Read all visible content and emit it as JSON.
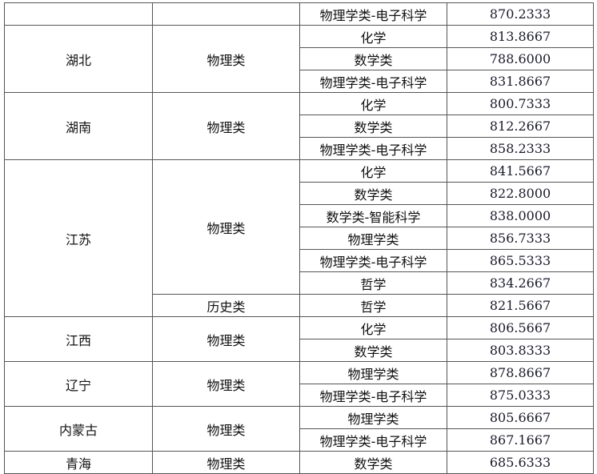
{
  "rows": [
    {
      "province": "",
      "category": "",
      "majors": [
        {
          "major": "物理学类-电子科学",
          "score": "870.2333"
        }
      ],
      "prov_span": 1,
      "cats": [
        {
          "category": "",
          "majors": [
            {
              "major": "物理学类-电子科学",
              "score": "870.2333"
            }
          ]
        }
      ]
    },
    {
      "province": "湖北",
      "cats": [
        {
          "category": "物理类",
          "majors": [
            {
              "major": "化学",
              "score": "813.8667"
            },
            {
              "major": "数学类",
              "score": "788.6000"
            },
            {
              "major": "物理学类-电子科学",
              "score": "831.8667"
            }
          ]
        }
      ]
    },
    {
      "province": "湖南",
      "cats": [
        {
          "category": "物理类",
          "majors": [
            {
              "major": "化学",
              "score": "800.7333"
            },
            {
              "major": "数学类",
              "score": "812.2667"
            },
            {
              "major": "物理学类-电子科学",
              "score": "858.2333"
            }
          ]
        }
      ]
    },
    {
      "province": "江苏",
      "cats": [
        {
          "category": "物理类",
          "majors": [
            {
              "major": "化学",
              "score": "841.5667"
            },
            {
              "major": "数学类",
              "score": "822.8000"
            },
            {
              "major": "数学类-智能科学",
              "score": "838.0000"
            },
            {
              "major": "物理学类",
              "score": "856.7333"
            },
            {
              "major": "物理学类-电子科学",
              "score": "865.5333"
            },
            {
              "major": "哲学",
              "score": "834.2667"
            }
          ]
        },
        {
          "category": "历史类",
          "majors": [
            {
              "major": "哲学",
              "score": "821.5667"
            }
          ]
        }
      ]
    },
    {
      "province": "江西",
      "cats": [
        {
          "category": "物理类",
          "majors": [
            {
              "major": "化学",
              "score": "806.5667"
            },
            {
              "major": "数学类",
              "score": "803.8333"
            }
          ]
        }
      ]
    },
    {
      "province": "辽宁",
      "cats": [
        {
          "category": "物理类",
          "majors": [
            {
              "major": "物理学类",
              "score": "878.8667"
            },
            {
              "major": "物理学类-电子科学",
              "score": "875.0333"
            }
          ]
        }
      ]
    },
    {
      "province": "内蒙古",
      "cats": [
        {
          "category": "物理类",
          "majors": [
            {
              "major": "物理学类",
              "score": "805.6667"
            },
            {
              "major": "物理学类-电子科学",
              "score": "867.1667"
            }
          ]
        }
      ]
    },
    {
      "province": "青海",
      "cats": [
        {
          "category": "物理类",
          "majors": [
            {
              "major": "数学类",
              "score": "685.6333"
            }
          ]
        }
      ]
    }
  ]
}
